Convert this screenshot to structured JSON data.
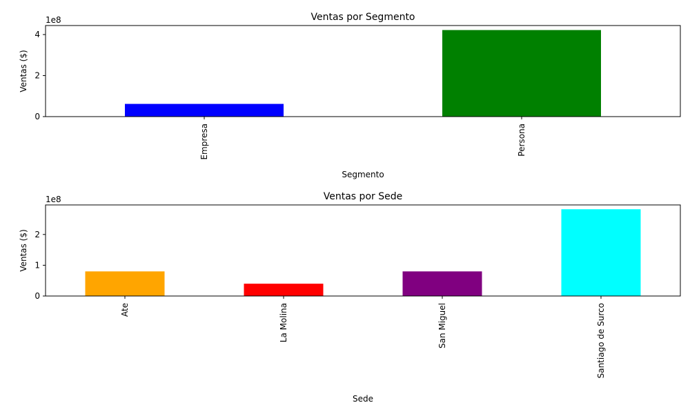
{
  "chart_data": [
    {
      "type": "bar",
      "title": "Ventas por Segmento",
      "xlabel": "Segmento",
      "ylabel": "Ventas ($)",
      "offset_label": "1e8",
      "categories": [
        "Empresa",
        "Persona"
      ],
      "values": [
        0.62,
        4.22
      ],
      "value_unit": "1e8",
      "colors": [
        "#0000ff",
        "#008000"
      ],
      "ylim": [
        0,
        4.44
      ],
      "yticks": [
        0,
        2,
        4
      ],
      "ytick_labels": [
        "0",
        "2",
        "4"
      ],
      "grid": false,
      "legend": "none"
    },
    {
      "type": "bar",
      "title": "Ventas por Sede",
      "xlabel": "Sede",
      "ylabel": "Ventas ($)",
      "offset_label": "1e8",
      "categories": [
        "Ate",
        "La Molina",
        "San Miguel",
        "Santiago de Surco"
      ],
      "values": [
        0.8,
        0.4,
        0.8,
        2.82
      ],
      "value_unit": "1e8",
      "colors": [
        "#ffa500",
        "#ff0000",
        "#800080",
        "#00ffff"
      ],
      "ylim": [
        0,
        2.96
      ],
      "yticks": [
        0,
        1,
        2
      ],
      "ytick_labels": [
        "0",
        "1",
        "2"
      ],
      "grid": false,
      "legend": "none"
    }
  ]
}
